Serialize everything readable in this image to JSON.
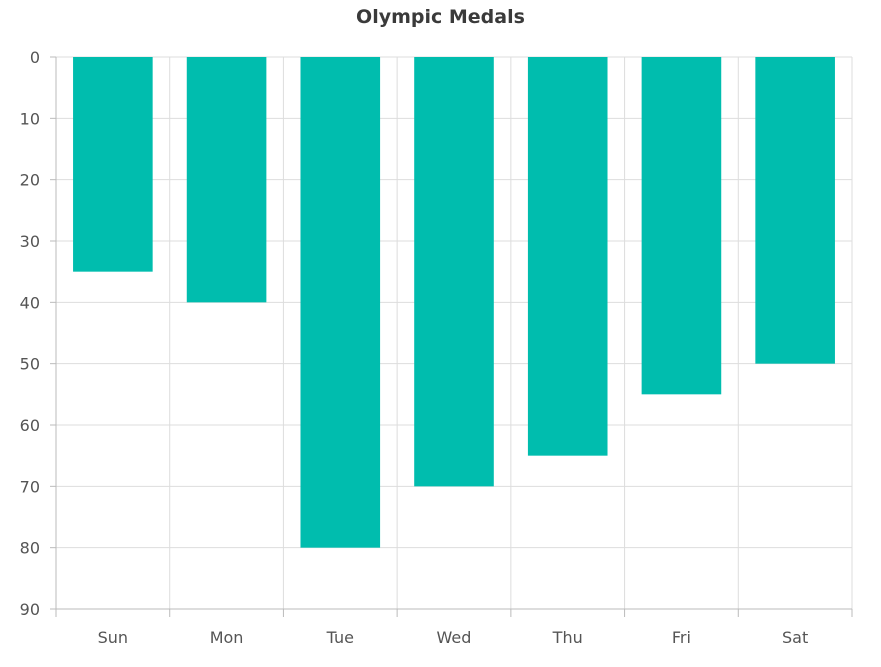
{
  "chart_data": {
    "type": "bar",
    "orientation": "vertical",
    "y_axis_inverted": true,
    "title": "Olympic Medals",
    "xlabel": "",
    "ylabel": "",
    "categories": [
      "Sun",
      "Mon",
      "Tue",
      "Wed",
      "Thu",
      "Fri",
      "Sat"
    ],
    "values": [
      35,
      40,
      80,
      70,
      65,
      55,
      50
    ],
    "ylim": [
      0,
      90
    ],
    "yticks": [
      0,
      10,
      20,
      30,
      40,
      50,
      60,
      70,
      80,
      90
    ],
    "grid": true,
    "legend": "none",
    "colors": {
      "bar": "#00BDAE",
      "grid": "#dddddd",
      "axis": "#bbbbbb"
    }
  }
}
